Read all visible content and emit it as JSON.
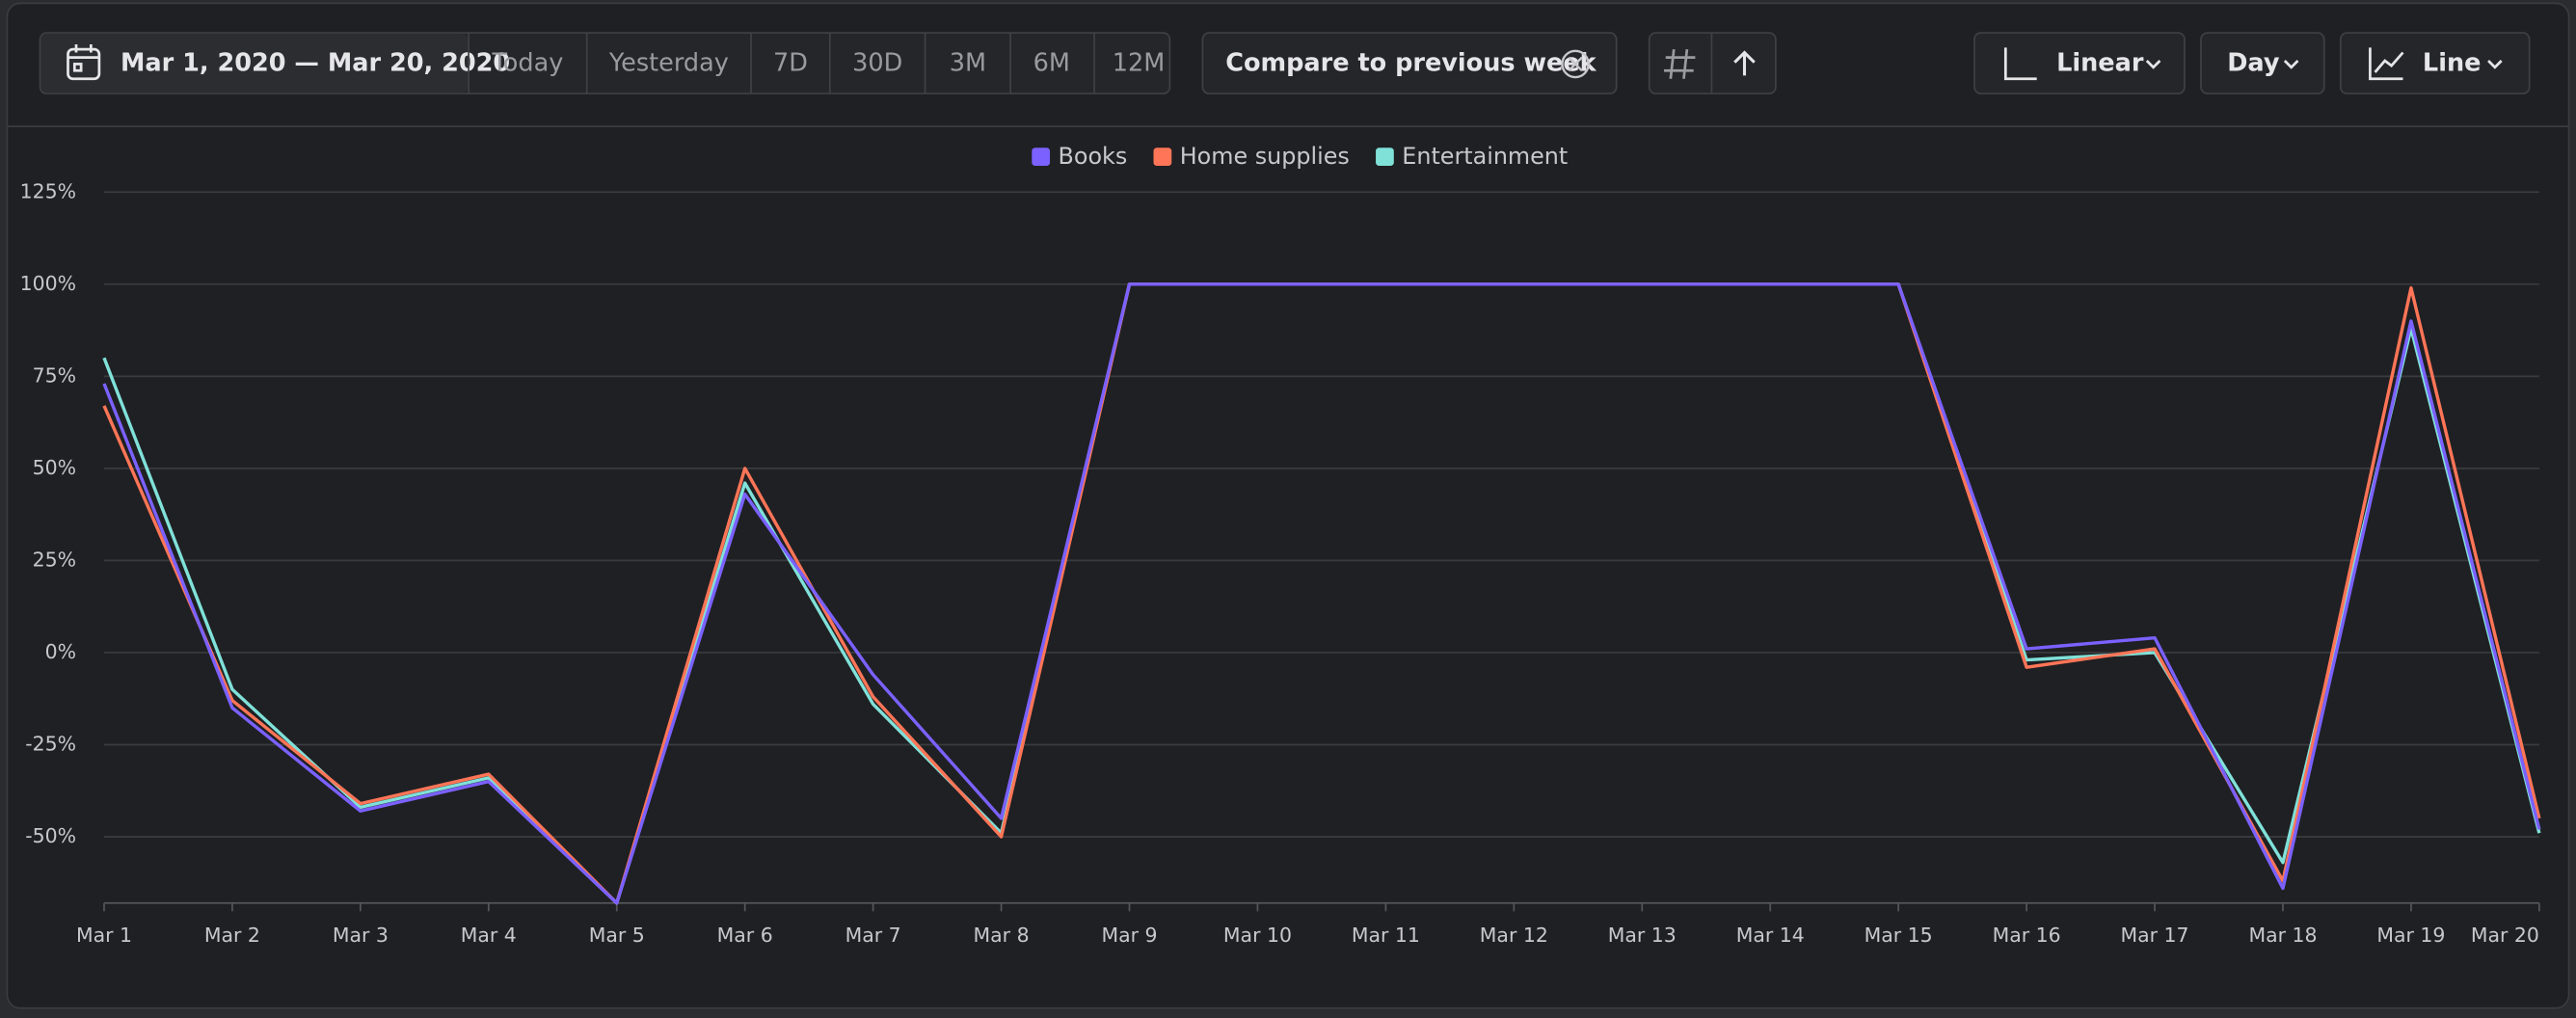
{
  "toolbar": {
    "date_range": "Mar 1, 2020 — Mar 20, 2020",
    "presets": [
      "Today",
      "Yesterday",
      "7D",
      "30D",
      "3M",
      "6M",
      "12M"
    ],
    "compare": "Compare to previous week",
    "scale": "Linear",
    "interval": "Day",
    "chart_type": "Line"
  },
  "chart_data": {
    "type": "line",
    "categories": [
      "Mar 1",
      "Mar 2",
      "Mar 3",
      "Mar 4",
      "Mar 5",
      "Mar 6",
      "Mar 7",
      "Mar 8",
      "Mar 9",
      "Mar 10",
      "Mar 11",
      "Mar 12",
      "Mar 13",
      "Mar 14",
      "Mar 15",
      "Mar 16",
      "Mar 17",
      "Mar 18",
      "Mar 19",
      "Mar 20"
    ],
    "series": [
      {
        "name": "Books",
        "color": "#7b61ff",
        "values": [
          73,
          -15,
          -43,
          -35,
          -68,
          43,
          -6,
          -45,
          100,
          100,
          100,
          100,
          100,
          100,
          100,
          1,
          4,
          -64,
          90,
          -48
        ]
      },
      {
        "name": "Home supplies",
        "color": "#ff7557",
        "values": [
          67,
          -13,
          -41,
          -33,
          -68,
          50,
          -12,
          -50,
          100,
          100,
          100,
          100,
          100,
          100,
          100,
          -4,
          1,
          -62,
          99,
          -45
        ]
      },
      {
        "name": "Entertainment",
        "color": "#80e1d9",
        "values": [
          80,
          -10,
          -42,
          -34,
          -68,
          46,
          -14,
          -49,
          100,
          100,
          100,
          100,
          100,
          100,
          100,
          -2,
          0,
          -57,
          88,
          -49
        ]
      }
    ],
    "ylim": [
      -68,
      125
    ],
    "yticks": [
      {
        "value": -50,
        "label": "-50%"
      },
      {
        "value": -25,
        "label": "-25%"
      },
      {
        "value": 0,
        "label": "0%"
      },
      {
        "value": 25,
        "label": "25%"
      },
      {
        "value": 50,
        "label": "50%"
      },
      {
        "value": 75,
        "label": "75%"
      },
      {
        "value": 100,
        "label": "100%"
      },
      {
        "value": 125,
        "label": "125%"
      }
    ],
    "grid": true,
    "legend": "top"
  }
}
